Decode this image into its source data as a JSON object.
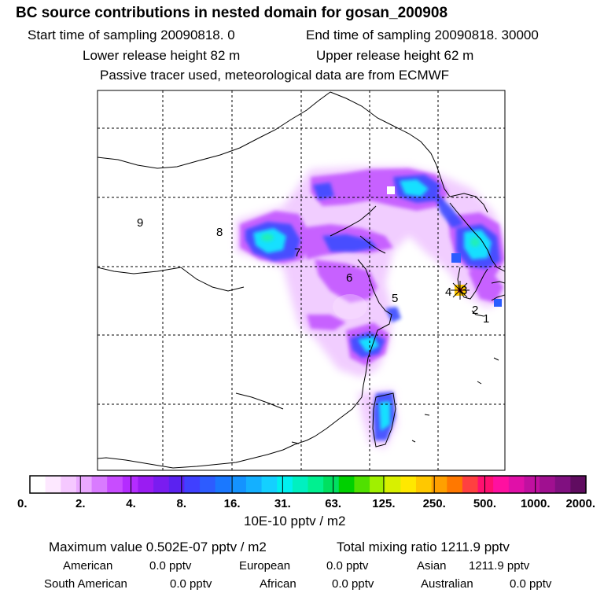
{
  "header": {
    "title": "BC  source contributions in nested domain for gosan_200908",
    "start_time": "Start time of sampling 20090818.     0",
    "end_time": "End time of sampling 20090818. 30000",
    "lower_release": "Lower release height   82 m",
    "upper_release": "Upper release height   62 m",
    "tracer_note": "Passive tracer used, meteorological data are from ECMWF"
  },
  "map": {
    "region_labels": [
      "1",
      "2",
      "3",
      "4",
      "5",
      "6",
      "7",
      "8",
      "9"
    ],
    "receptor_marker": "receptor-star"
  },
  "colorbar": {
    "tick_labels": [
      "0.",
      "2.",
      "4.",
      "8.",
      "16.",
      "31.",
      "63.",
      "125.",
      "250.",
      "500.",
      "1000.",
      "2000."
    ],
    "colors": [
      "#ffffff",
      "#fde8ff",
      "#f5c8ff",
      "#eaa8ff",
      "#d97bff",
      "#c84cff",
      "#b42cff",
      "#9a1cf2",
      "#7a1cf0",
      "#5b22f0",
      "#4040ff",
      "#2d5cff",
      "#1a78ff",
      "#1493ff",
      "#14b0ff",
      "#14d0ff",
      "#00f0f0",
      "#00f0c0",
      "#00f090",
      "#00e060",
      "#00d000",
      "#50e000",
      "#a0f000",
      "#d8f000",
      "#ffe800",
      "#ffc800",
      "#ffa000",
      "#ff7800",
      "#ff4040",
      "#ff1070",
      "#ff10a0",
      "#e010a8",
      "#c010a0",
      "#a01090",
      "#801080",
      "#600c60"
    ],
    "units": "10E-10 pptv / m2"
  },
  "summary": {
    "max_value": "Maximum value  0.502E-07 pptv / m2",
    "total_mixing": "Total mixing ratio     1211.9 pptv",
    "american_label": "American",
    "american_value": "0.0 pptv",
    "european_label": "European",
    "european_value": "0.0 pptv",
    "asian_label": "Asian",
    "asian_value": "1211.9 pptv",
    "south_american_label": "South American",
    "south_american_value": "0.0 pptv",
    "african_label": "African",
    "african_value": "0.0 pptv",
    "australian_label": "Australian",
    "australian_value": "0.0 pptv"
  }
}
